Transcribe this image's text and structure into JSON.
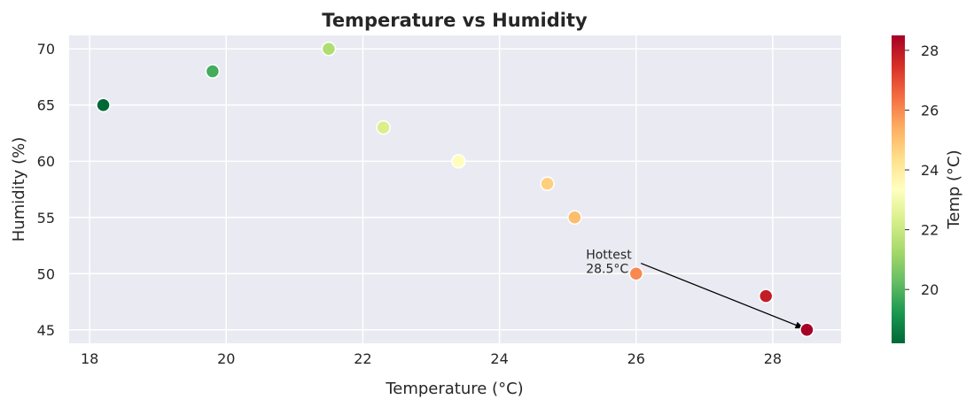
{
  "chart_data": {
    "type": "scatter",
    "title": "Temperature vs Humidity",
    "xlabel": "Temperature (°C)",
    "ylabel": "Humidity (%)",
    "xlim": [
      17.7,
      29.0
    ],
    "ylim": [
      43.8,
      71.2
    ],
    "xticks": [
      18,
      20,
      22,
      24,
      26,
      28
    ],
    "yticks": [
      45,
      50,
      55,
      60,
      65,
      70
    ],
    "grid": true,
    "points": [
      {
        "x": 18.2,
        "y": 65
      },
      {
        "x": 19.8,
        "y": 68
      },
      {
        "x": 21.5,
        "y": 70
      },
      {
        "x": 22.3,
        "y": 63
      },
      {
        "x": 23.4,
        "y": 60
      },
      {
        "x": 24.7,
        "y": 58
      },
      {
        "x": 25.1,
        "y": 55
      },
      {
        "x": 26.0,
        "y": 50
      },
      {
        "x": 27.9,
        "y": 48
      },
      {
        "x": 28.5,
        "y": 45
      }
    ],
    "colorbar": {
      "label": "Temp (°C)",
      "colormap": "RdYlGn_r",
      "range": [
        18.2,
        28.5
      ],
      "ticks": [
        20,
        22,
        24,
        26,
        28
      ]
    },
    "annotation": {
      "text_line1": "Hottest",
      "text_line2": "28.5°C",
      "target": {
        "x": 28.5,
        "y": 45
      },
      "text_anchor": {
        "x": 25.5,
        "y": 51
      }
    }
  }
}
